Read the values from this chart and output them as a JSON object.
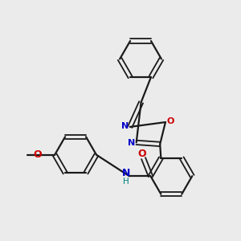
{
  "bg_color": "#ebebeb",
  "bond_color": "#1a1a1a",
  "N_color": "#0000cc",
  "O_color": "#cc0000",
  "NH_color": "#008080",
  "figsize": [
    3.0,
    3.0
  ],
  "dpi": 100,
  "xlim": [
    0,
    10
  ],
  "ylim": [
    0,
    10
  ]
}
